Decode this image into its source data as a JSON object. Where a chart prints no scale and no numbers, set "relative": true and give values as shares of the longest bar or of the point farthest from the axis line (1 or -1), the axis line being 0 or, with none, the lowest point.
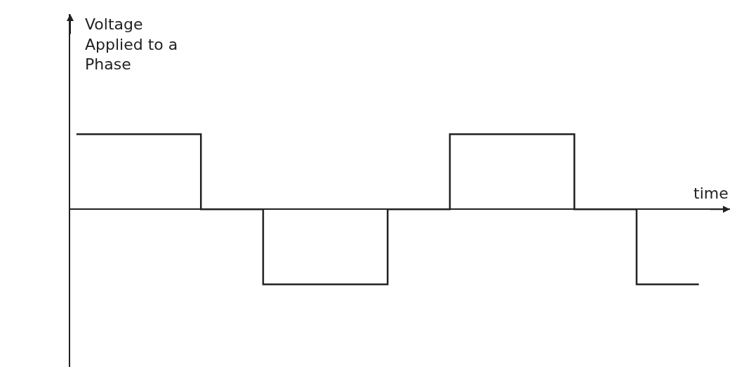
{
  "chart_data": {
    "type": "step",
    "xlabel": "time",
    "ylabel": "Voltage\nApplied to a\nPhase",
    "relative": true,
    "legend": false,
    "categories": [
      null,
      null,
      null,
      null,
      null,
      null,
      null,
      null,
      null,
      null,
      null
    ],
    "series": [
      {
        "color": "#222222",
        "values": [
          1,
          1,
          0,
          -1,
          -1,
          0,
          1,
          1,
          0,
          -1,
          -1
        ]
      }
    ]
  }
}
